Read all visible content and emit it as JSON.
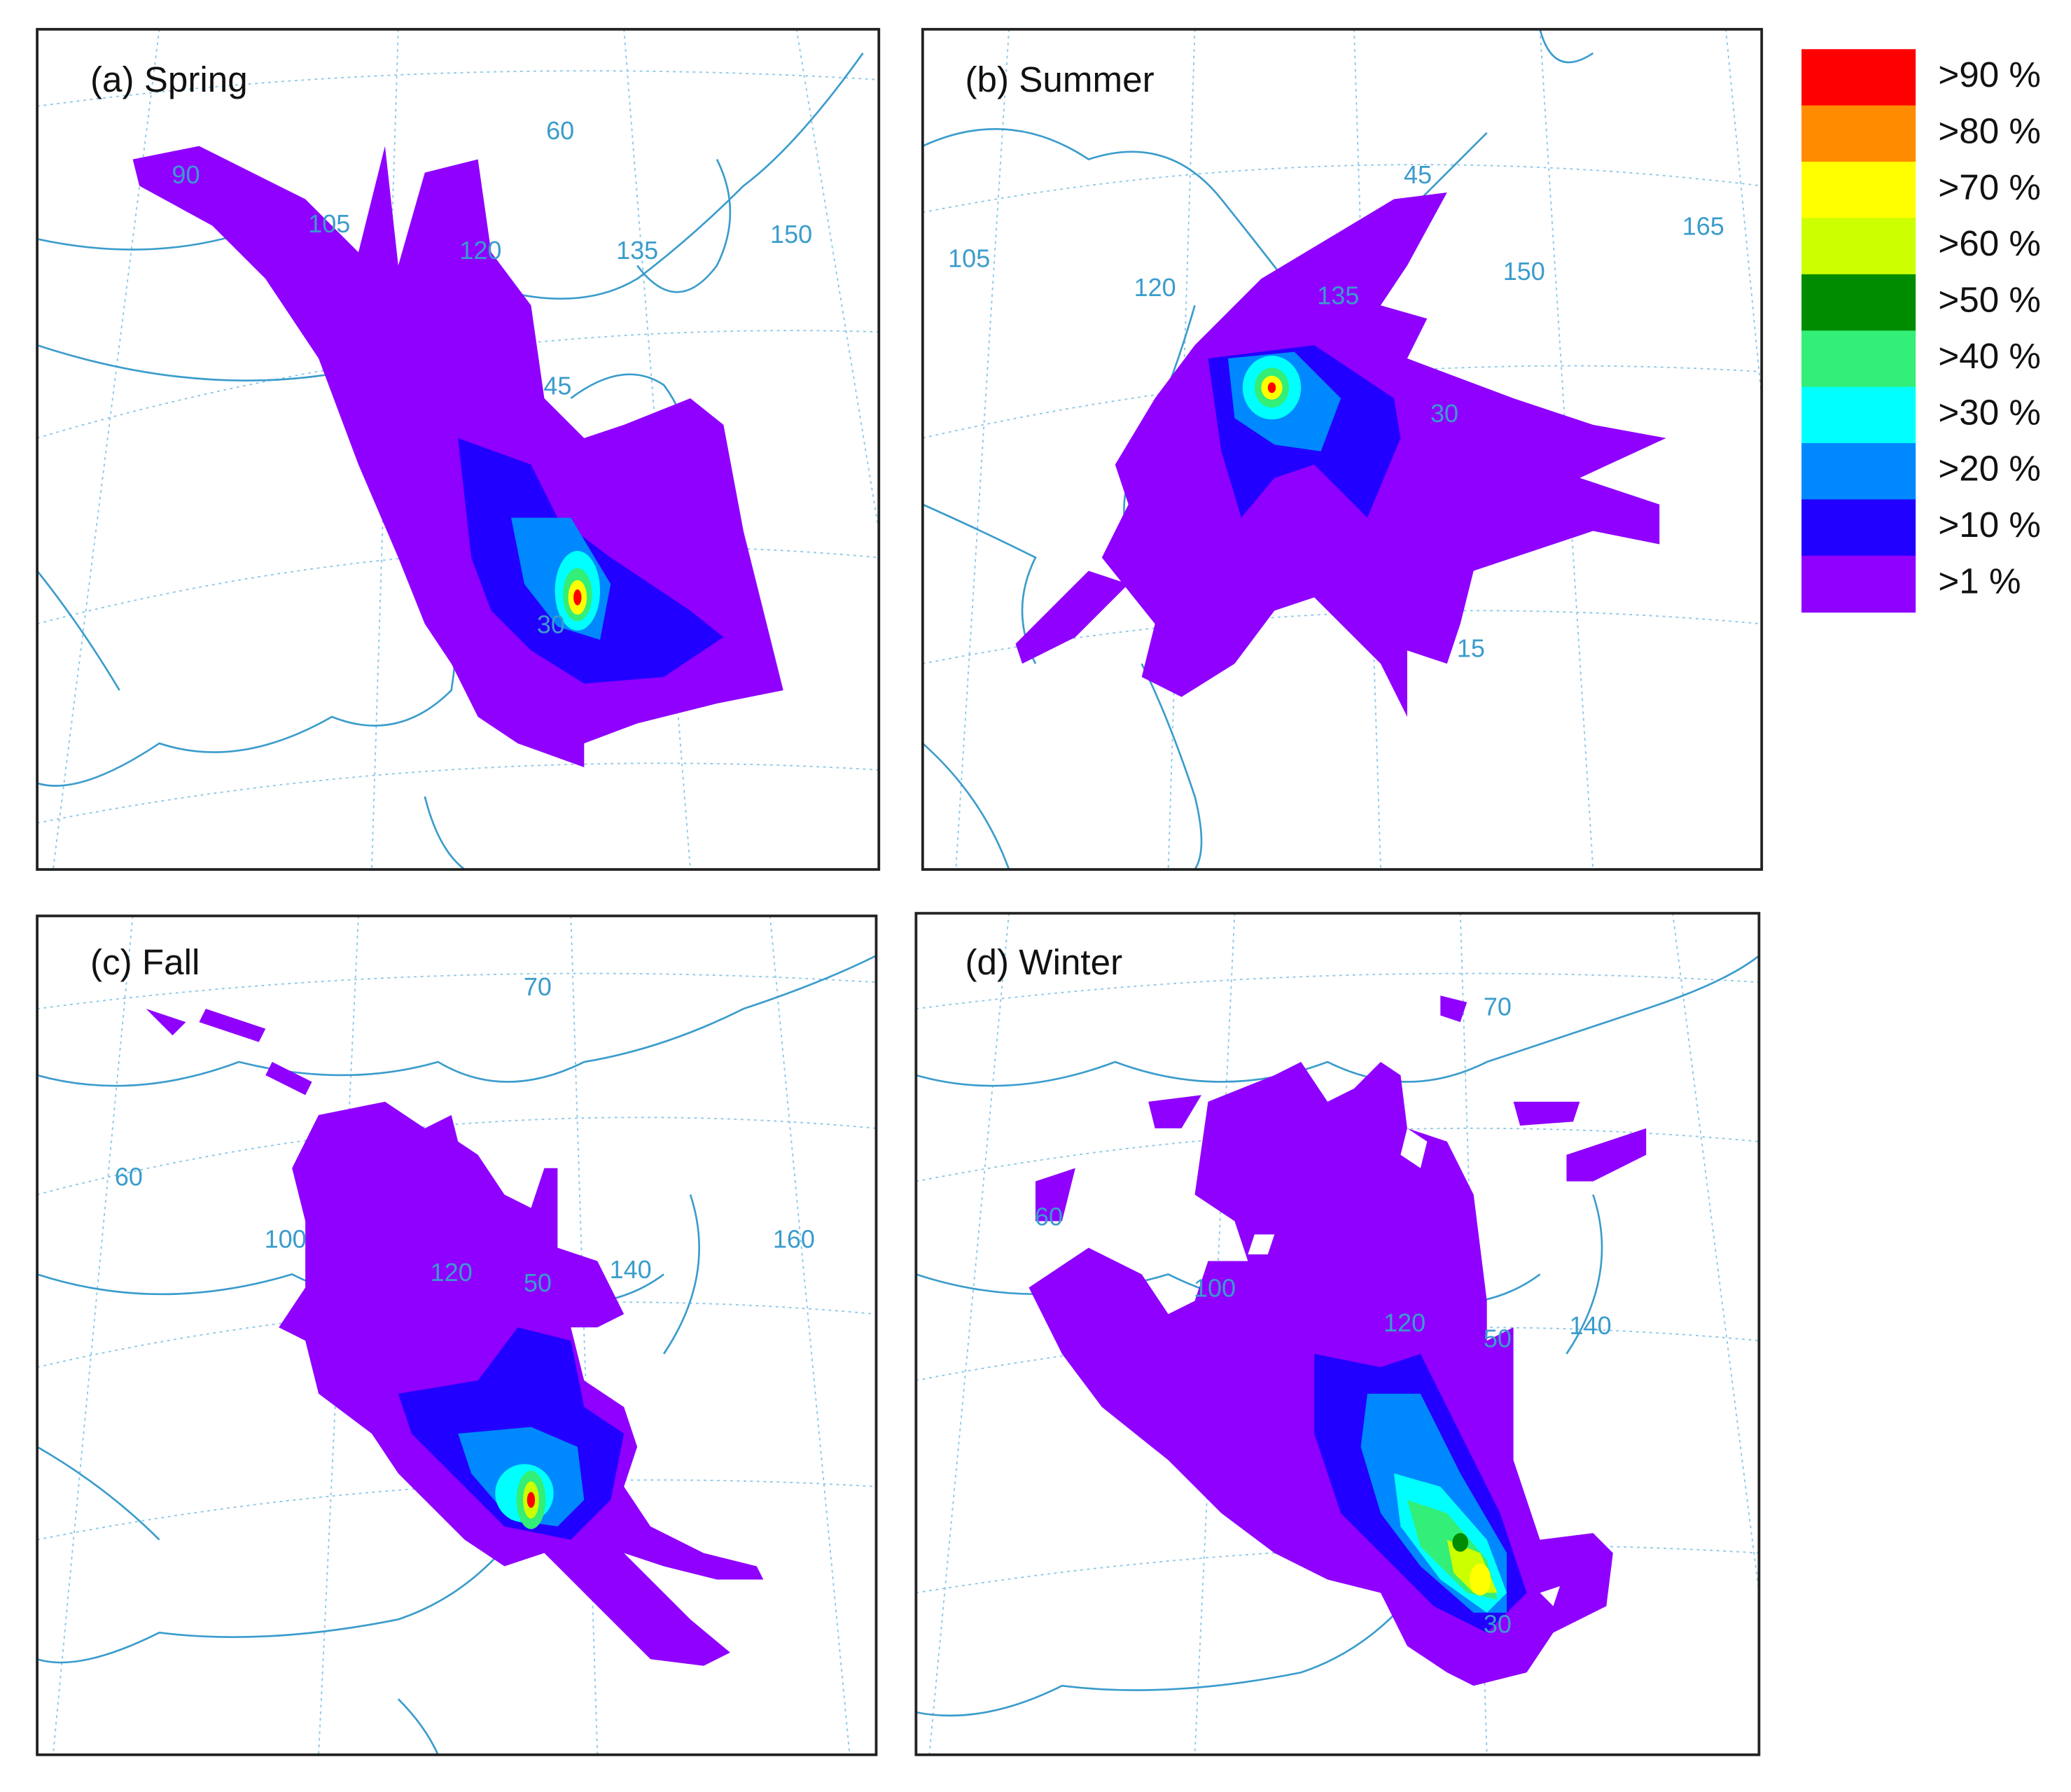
{
  "panels": [
    {
      "title": "(a) Spring",
      "grid_labels": [
        "60",
        "90",
        "105",
        "120",
        "135",
        "150",
        "45",
        "30"
      ]
    },
    {
      "title": "(b) Summer",
      "grid_labels": [
        "45",
        "165",
        "105",
        "120",
        "135",
        "150",
        "30",
        "15"
      ]
    },
    {
      "title": "(c) Fall",
      "grid_labels": [
        "70",
        "60",
        "100",
        "160",
        "120",
        "50",
        "140"
      ]
    },
    {
      "title": "(d) Winter",
      "grid_labels": [
        "70",
        "60",
        "100",
        "120",
        "50",
        "140",
        "30"
      ]
    }
  ],
  "legend": [
    {
      "label": ">90 %",
      "color": "#ff0000"
    },
    {
      "label": ">80 %",
      "color": "#ff8c00"
    },
    {
      "label": ">70 %",
      "color": "#ffff00"
    },
    {
      "label": ">60 %",
      "color": "#ccff00"
    },
    {
      "label": ">50 %",
      "color": "#008c00"
    },
    {
      "label": ">40 %",
      "color": "#33ee77"
    },
    {
      "label": ">30 %",
      "color": "#00ffff"
    },
    {
      "label": ">20 %",
      "color": "#0088ff"
    },
    {
      "label": ">10 %",
      "color": "#2200ff"
    },
    {
      "label": ">1 %",
      "color": "#8f00ff"
    }
  ]
}
